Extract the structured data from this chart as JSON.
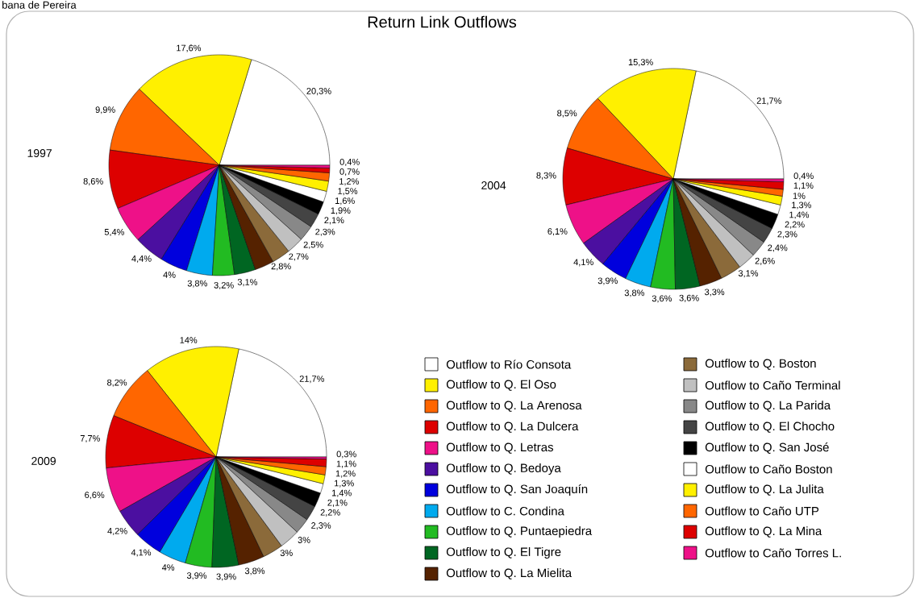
{
  "chart_data": [
    {
      "type": "pie",
      "title": "Return Link Outflows",
      "subtitle": "1997",
      "annotations": [
        "bana de Pereira"
      ],
      "values": [
        20.3,
        17.6,
        9.9,
        8.6,
        5.4,
        4.4,
        4,
        3.8,
        3.2,
        3.1,
        2.8,
        2.7,
        2.5,
        2.3,
        2.1,
        1.9,
        1.6,
        1.5,
        1.2,
        0.7,
        0.4
      ],
      "value_labels": [
        "20,3%",
        "17,6%",
        "9,9%",
        "8,6%",
        "5,4%",
        "4,4%",
        "4%",
        "3,8%",
        "3,2%",
        "3,1%",
        "2,8%",
        "2,7%",
        "2,5%",
        "2,3%",
        "2,1%",
        "1,9%",
        "1,6%",
        "1,5%",
        "1,2%",
        "0,7%",
        "0,4%"
      ],
      "colors": [
        "#ffffff",
        "#fff000",
        "#ff6600",
        "#dd0000",
        "#ee1188",
        "#4b0fa0",
        "#0000dd",
        "#00aaee",
        "#22bb22",
        "#006622",
        "#552200",
        "#8b6a3a",
        "#c0c0c0",
        "#888888",
        "#444444",
        "#000000",
        "#ffffff",
        "#fff000",
        "#ff6600",
        "#dd0000",
        "#ee1188"
      ]
    },
    {
      "type": "pie",
      "subtitle": "2004",
      "values": [
        21.7,
        15.3,
        8.5,
        8.3,
        6.1,
        4.1,
        3.9,
        3.8,
        3.6,
        3.6,
        3.3,
        3.1,
        2.6,
        2.4,
        2.3,
        2.2,
        1.4,
        1.3,
        1.0,
        1.1,
        0.4
      ],
      "value_labels": [
        "21,7%",
        "15,3%",
        "8,5%",
        "8,3%",
        "6,1%",
        "4,1%",
        "3,9%",
        "3,8%",
        "3,6%",
        "3,6%",
        "3,3%",
        "3,1%",
        "2,6%",
        "2,4%",
        "2,3%",
        "2,2%",
        "1,4%",
        "1,3%",
        "1%",
        "1,1%",
        "0,4%"
      ],
      "colors": [
        "#ffffff",
        "#fff000",
        "#ff6600",
        "#dd0000",
        "#ee1188",
        "#4b0fa0",
        "#0000dd",
        "#00aaee",
        "#22bb22",
        "#006622",
        "#552200",
        "#8b6a3a",
        "#c0c0c0",
        "#888888",
        "#444444",
        "#000000",
        "#ffffff",
        "#fff000",
        "#ff6600",
        "#dd0000",
        "#ee1188"
      ]
    },
    {
      "type": "pie",
      "subtitle": "2009",
      "legend": "right",
      "categories": [
        "Outflow to Río Consota",
        "Outflow to Q. El Oso",
        "Outflow to Q. La Arenosa",
        "Outflow to Q. La Dulcera",
        "Outflow to Q. Letras",
        "Outflow to Q. Bedoya",
        "Outflow to Q. San Joaquín",
        "Outflow to C. Condina",
        "Outflow to Q. Puntaepiedra",
        "Outflow to Q. El Tigre",
        "Outflow to Q. La Mielita",
        "Outflow to Q. Boston",
        "Outflow to Caño Terminal",
        "Outflow to Q. La Parida",
        "Outflow to Q. El Chocho",
        "Outflow to Q. San José",
        "Outflow to Caño Boston",
        "Outflow to Q. La Julita",
        "Outflow to Caño UTP",
        "Outflow to Q. La Mina",
        "Outflow to Caño Torres L."
      ],
      "values": [
        21.7,
        14,
        8.2,
        7.7,
        6.6,
        4.2,
        4.1,
        4,
        3.9,
        3.9,
        3.8,
        3,
        3,
        2.3,
        2.2,
        2.1,
        1.4,
        1.3,
        1.2,
        1.1,
        0.3
      ],
      "value_labels": [
        "21,7%",
        "14%",
        "8,2%",
        "7,7%",
        "6,6%",
        "4,2%",
        "4,1%",
        "4%",
        "3,9%",
        "3,9%",
        "3,8%",
        "3%",
        "3%",
        "2,3%",
        "2,2%",
        "2,1%",
        "1,4%",
        "1,3%",
        "1,2%",
        "1,1%",
        "0,3%"
      ],
      "colors": [
        "#ffffff",
        "#fff000",
        "#ff6600",
        "#dd0000",
        "#ee1188",
        "#4b0fa0",
        "#0000dd",
        "#00aaee",
        "#22bb22",
        "#006622",
        "#552200",
        "#8b6a3a",
        "#c0c0c0",
        "#888888",
        "#444444",
        "#000000",
        "#ffffff",
        "#fff000",
        "#ff6600",
        "#dd0000",
        "#ee1188"
      ]
    }
  ]
}
